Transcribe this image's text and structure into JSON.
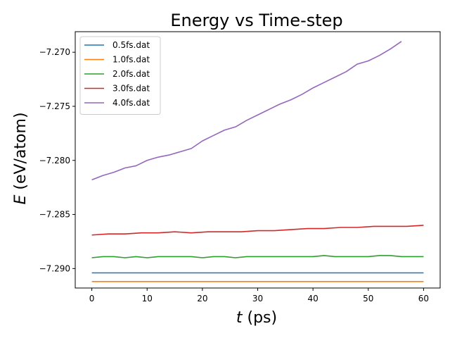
{
  "chart_data": {
    "type": "line",
    "title": "Energy vs Time-step",
    "xlabel": {
      "var": "t",
      "unit": " (ps)"
    },
    "ylabel": {
      "var": "E",
      "unit": " (eV/atom)"
    },
    "xlim": [
      -3,
      63
    ],
    "ylim": [
      -7.2918,
      -7.2681
    ],
    "x_ticks": [
      0,
      10,
      20,
      30,
      40,
      50,
      60
    ],
    "y_ticks": [
      -7.29,
      -7.285,
      -7.28,
      -7.275,
      -7.27
    ],
    "y_tick_labels": [
      "−7.290",
      "−7.285",
      "−7.280",
      "−7.275",
      "−7.270"
    ],
    "legend_position": "upper-left",
    "grid": false,
    "series": [
      {
        "name": "0.5fs.dat",
        "color": "#1f77b4",
        "x": [
          0,
          10,
          20,
          30,
          40,
          50,
          60
        ],
        "y": [
          -7.2904,
          -7.2904,
          -7.2904,
          -7.2904,
          -7.2904,
          -7.2904,
          -7.2904
        ]
      },
      {
        "name": "1.0fs.dat",
        "color": "#ff7f0e",
        "x": [
          0,
          10,
          20,
          30,
          40,
          50,
          60
        ],
        "y": [
          -7.2912,
          -7.2912,
          -7.2912,
          -7.2912,
          -7.2912,
          -7.2912,
          -7.2912
        ]
      },
      {
        "name": "2.0fs.dat",
        "color": "#2ca02c",
        "x": [
          0,
          2,
          4,
          6,
          8,
          10,
          12,
          14,
          16,
          18,
          20,
          22,
          24,
          26,
          28,
          30,
          32,
          34,
          36,
          38,
          40,
          42,
          44,
          46,
          48,
          50,
          52,
          54,
          56,
          58,
          60
        ],
        "y": [
          -7.289,
          -7.2889,
          -7.2889,
          -7.289,
          -7.2889,
          -7.289,
          -7.2889,
          -7.2889,
          -7.2889,
          -7.2889,
          -7.289,
          -7.2889,
          -7.2889,
          -7.289,
          -7.2889,
          -7.2889,
          -7.2889,
          -7.2889,
          -7.2889,
          -7.2889,
          -7.2889,
          -7.2888,
          -7.2889,
          -7.2889,
          -7.2889,
          -7.2889,
          -7.2888,
          -7.2888,
          -7.2889,
          -7.2889,
          -7.2889
        ]
      },
      {
        "name": "3.0fs.dat",
        "color": "#d62728",
        "x": [
          0,
          3,
          6,
          9,
          12,
          15,
          18,
          21,
          24,
          27,
          30,
          33,
          36,
          39,
          42,
          45,
          48,
          51,
          54,
          57,
          60
        ],
        "y": [
          -7.2869,
          -7.2868,
          -7.2868,
          -7.2867,
          -7.2867,
          -7.2866,
          -7.2867,
          -7.2866,
          -7.2866,
          -7.2866,
          -7.2865,
          -7.2865,
          -7.2864,
          -7.2863,
          -7.2863,
          -7.2862,
          -7.2862,
          -7.2861,
          -7.2861,
          -7.2861,
          -7.286
        ]
      },
      {
        "name": "4.0fs.dat",
        "color": "#9467bd",
        "x": [
          0,
          2,
          4,
          6,
          8,
          10,
          12,
          14,
          16,
          18,
          20,
          22,
          24,
          26,
          28,
          30,
          32,
          34,
          36,
          38,
          40,
          42,
          44,
          46,
          48,
          50,
          52,
          54,
          56
        ],
        "y": [
          -7.2818,
          -7.2814,
          -7.2811,
          -7.2807,
          -7.2805,
          -7.28,
          -7.2797,
          -7.2795,
          -7.2792,
          -7.2789,
          -7.2782,
          -7.2777,
          -7.2772,
          -7.2769,
          -7.2763,
          -7.2758,
          -7.2753,
          -7.2748,
          -7.2744,
          -7.2739,
          -7.2733,
          -7.2728,
          -7.2723,
          -7.2718,
          -7.2711,
          -7.2708,
          -7.2703,
          -7.2697,
          -7.269
        ]
      }
    ]
  }
}
